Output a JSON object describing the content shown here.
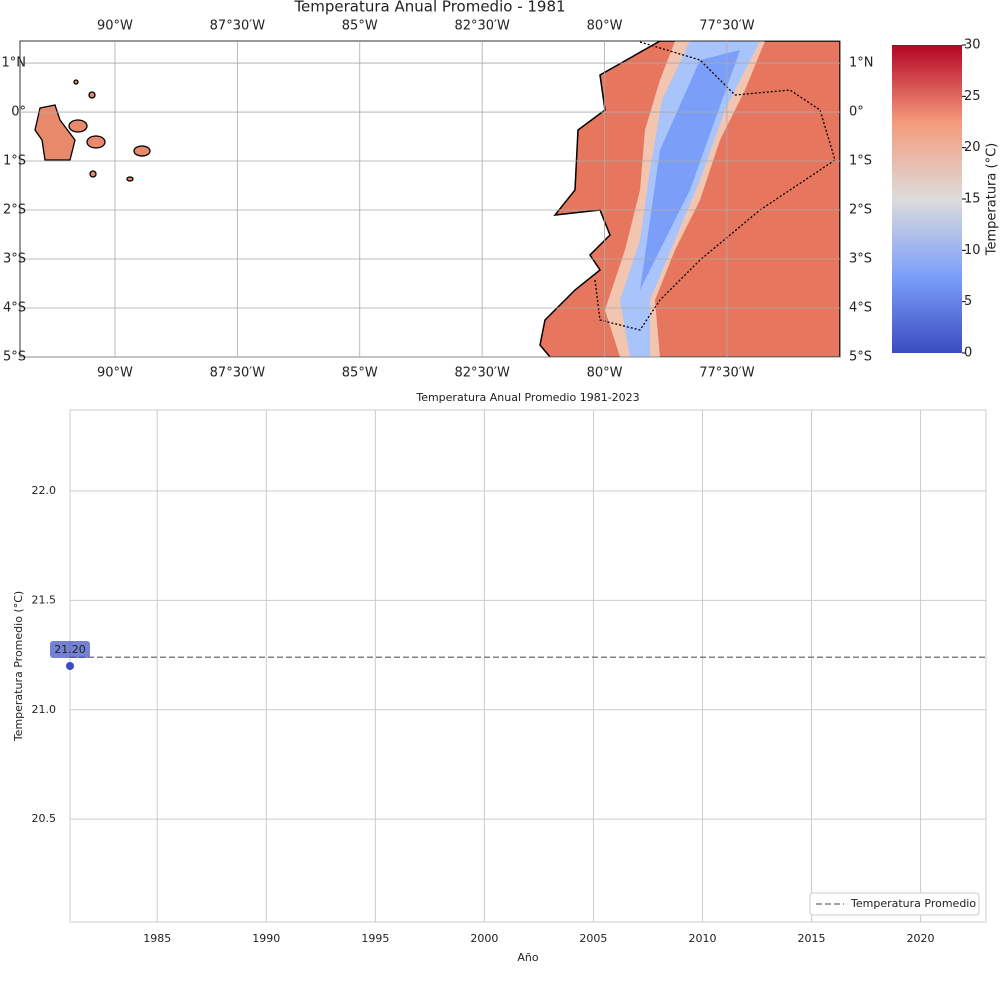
{
  "chart_data": [
    {
      "type": "map",
      "title": "Temperatura Anual Promedio - 1981",
      "xlim": [
        -91.94,
        -75.19
      ],
      "xticks": [
        {
          "value": -90,
          "label": "90°W"
        },
        {
          "value": -87.5,
          "label": "87°30′W"
        },
        {
          "value": -85,
          "label": "85°W"
        },
        {
          "value": -82.5,
          "label": "82°30′W"
        },
        {
          "value": -80,
          "label": "80°W"
        },
        {
          "value": -77.5,
          "label": "77°30′W"
        }
      ],
      "ylim": [
        -5,
        1.45
      ],
      "yticks": [
        {
          "value": 1,
          "label": "1°N"
        },
        {
          "value": 0,
          "label": "0°"
        },
        {
          "value": -1,
          "label": "1°S"
        },
        {
          "value": -2,
          "label": "2°S"
        },
        {
          "value": -3,
          "label": "3°S"
        },
        {
          "value": -4,
          "label": "4°S"
        },
        {
          "value": -5,
          "label": "5°S"
        }
      ],
      "grid": true,
      "colorbar": {
        "label": "Temperatura (°C)",
        "lim": [
          0,
          30
        ],
        "ticks": [
          0,
          5,
          10,
          15,
          20,
          25,
          30
        ]
      }
    },
    {
      "type": "line",
      "title": "Temperatura Anual Promedio 1981-2023",
      "x_label": "Año",
      "y_label": "Temperatura Promedio (°C)",
      "x": [
        1981
      ],
      "series": [
        {
          "color": "#3b4cc0",
          "values": [
            21.2
          ],
          "value_labels": [
            "21.20"
          ]
        }
      ],
      "mean_line": {
        "name": "Temperatura Promedio",
        "value": 21.24,
        "color": "#808080"
      },
      "xlim": [
        1981,
        2023
      ],
      "xticks": [
        1985,
        1990,
        1995,
        2000,
        2005,
        2010,
        2015,
        2020
      ],
      "ylim": [
        20.03,
        22.37
      ],
      "yticks": [
        20.5,
        {
          "value": 21,
          "label": "21.0"
        },
        21.5,
        {
          "value": 22,
          "label": "22.0"
        }
      ],
      "grid": true,
      "legend": "lower right"
    }
  ]
}
